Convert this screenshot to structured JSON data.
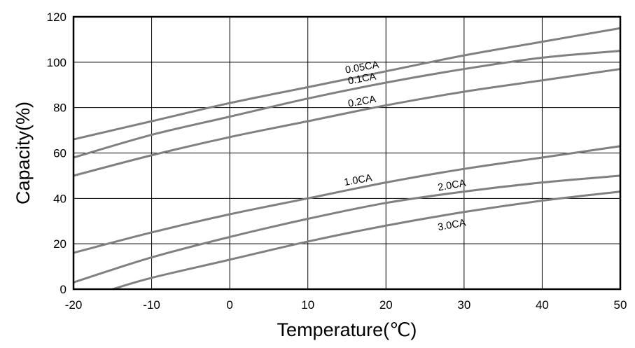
{
  "chart_data": {
    "type": "line",
    "title": "",
    "xlabel": "Temperature(℃)",
    "ylabel": "Capacity(%)",
    "xlim": [
      -20,
      50
    ],
    "ylim": [
      0,
      120
    ],
    "x_ticks": [
      "-20",
      "-10",
      "0",
      "10",
      "20",
      "30",
      "40",
      "50"
    ],
    "y_ticks": [
      "0",
      "20",
      "40",
      "60",
      "80",
      "100",
      "120"
    ],
    "grid": true,
    "legend": "none",
    "line_color": "#808080",
    "series": [
      {
        "name": "0.05CA",
        "x": [
          -20,
          -10,
          0,
          10,
          20,
          30,
          40,
          50
        ],
        "y": [
          66,
          74,
          82,
          89,
          96,
          103,
          109,
          115
        ]
      },
      {
        "name": "0.1CA",
        "x": [
          -20,
          -10,
          0,
          10,
          20,
          30,
          40,
          50
        ],
        "y": [
          58,
          68,
          76,
          84,
          91,
          97,
          102,
          105
        ]
      },
      {
        "name": "0.2CA",
        "x": [
          -20,
          -10,
          0,
          10,
          20,
          30,
          40,
          50
        ],
        "y": [
          50,
          59,
          67,
          74,
          81,
          87,
          92,
          97
        ]
      },
      {
        "name": "1.0CA",
        "x": [
          -20,
          -10,
          0,
          10,
          20,
          30,
          40,
          50
        ],
        "y": [
          16,
          25,
          33,
          40,
          47,
          53,
          58,
          63
        ]
      },
      {
        "name": "2.0CA",
        "x": [
          -20,
          -10,
          0,
          10,
          20,
          30,
          40,
          50
        ],
        "y": [
          3,
          14,
          23,
          31,
          38,
          43,
          47,
          50
        ]
      },
      {
        "name": "3.0CA",
        "x": [
          -15,
          -10,
          0,
          10,
          20,
          30,
          40,
          50
        ],
        "y": [
          0,
          5,
          13,
          21,
          28,
          34,
          39,
          43
        ]
      }
    ]
  }
}
